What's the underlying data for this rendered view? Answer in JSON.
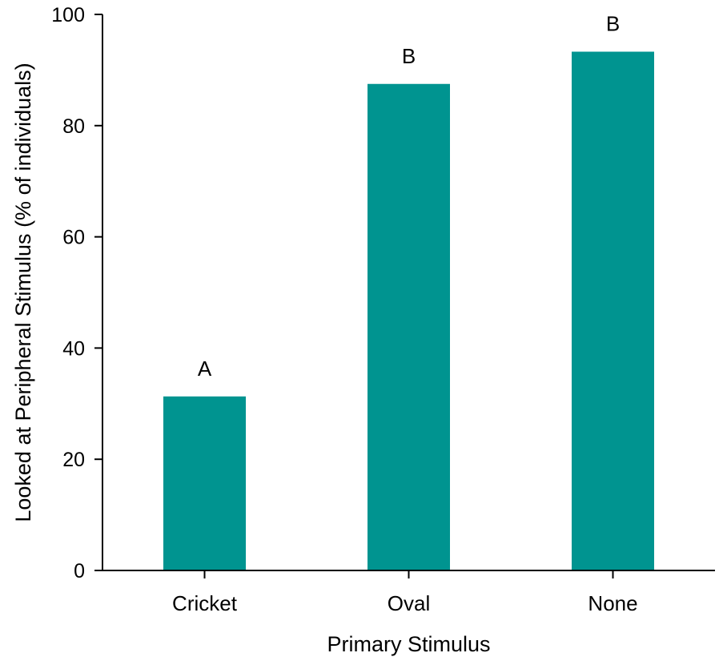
{
  "chart_data": {
    "type": "bar",
    "categories": [
      "Cricket",
      "Oval",
      "None"
    ],
    "values": [
      31.3,
      87.5,
      93.3
    ],
    "significance_labels": [
      "A",
      "B",
      "B"
    ],
    "xlabel": "Primary Stimulus",
    "ylabel": "Looked at Peripheral Stimulus (% of individuals)",
    "ylim": [
      0,
      100
    ],
    "yticks": [
      0,
      20,
      40,
      60,
      80,
      100
    ],
    "grid": false,
    "legend": "none",
    "bar_color": "#009490",
    "axis_color": "#000000"
  }
}
